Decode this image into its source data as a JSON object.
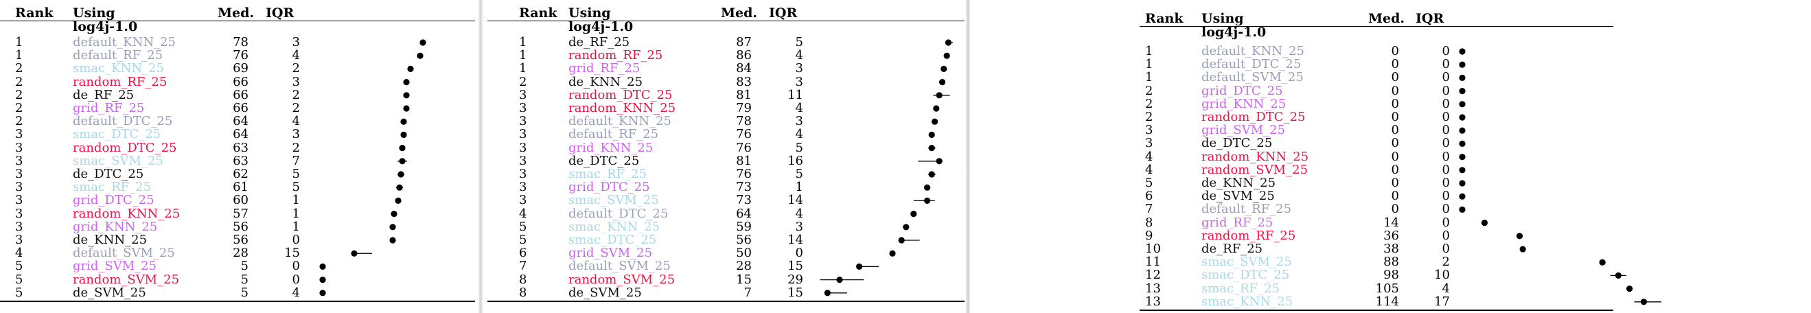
{
  "headers": {
    "rank": "Rank",
    "using": "Using",
    "med": "Med.",
    "iqr": "IQR"
  },
  "group_label": "log4j-1.0",
  "colors": {
    "default": "#9aa0b8",
    "smac": "#a8d8e6",
    "random": "#ee1144",
    "grid": "#cc66ee",
    "de": "#111111"
  },
  "panels": [
    {
      "rows": [
        {
          "rank": "1",
          "using": "default_KNN_25",
          "med": "78",
          "iqr": "3",
          "color": "default",
          "q1": 76.5,
          "q3": 79.5
        },
        {
          "rank": "1",
          "using": "default_RF_25",
          "med": "76",
          "iqr": "4",
          "color": "default",
          "q1": 74,
          "q3": 78
        },
        {
          "rank": "2",
          "using": "smac_KNN_25",
          "med": "69",
          "iqr": "2",
          "color": "smac",
          "q1": 68,
          "q3": 70
        },
        {
          "rank": "2",
          "using": "random_RF_25",
          "med": "66",
          "iqr": "3",
          "color": "random",
          "q1": 64.5,
          "q3": 67.5
        },
        {
          "rank": "2",
          "using": "de_RF_25",
          "med": "66",
          "iqr": "2",
          "color": "de",
          "q1": 65,
          "q3": 67
        },
        {
          "rank": "2",
          "using": "grid_RF_25",
          "med": "66",
          "iqr": "2",
          "color": "grid",
          "q1": 65,
          "q3": 67
        },
        {
          "rank": "2",
          "using": "default_DTC_25",
          "med": "64",
          "iqr": "4",
          "color": "default",
          "q1": 62,
          "q3": 66
        },
        {
          "rank": "3",
          "using": "smac_DTC_25",
          "med": "64",
          "iqr": "3",
          "color": "smac",
          "q1": 62.5,
          "q3": 65.5
        },
        {
          "rank": "3",
          "using": "random_DTC_25",
          "med": "63",
          "iqr": "2",
          "color": "random",
          "q1": 62,
          "q3": 64
        },
        {
          "rank": "3",
          "using": "smac_SVM_25",
          "med": "63",
          "iqr": "7",
          "color": "smac",
          "q1": 59.5,
          "q3": 66.5
        },
        {
          "rank": "3",
          "using": "de_DTC_25",
          "med": "62",
          "iqr": "5",
          "color": "de",
          "q1": 59.5,
          "q3": 64.5
        },
        {
          "rank": "3",
          "using": "smac_RF_25",
          "med": "61",
          "iqr": "5",
          "color": "smac",
          "q1": 58.5,
          "q3": 63.5
        },
        {
          "rank": "3",
          "using": "grid_DTC_25",
          "med": "60",
          "iqr": "1",
          "color": "grid",
          "q1": 59.5,
          "q3": 60.5
        },
        {
          "rank": "3",
          "using": "random_KNN_25",
          "med": "57",
          "iqr": "1",
          "color": "random",
          "q1": 56.5,
          "q3": 57.5
        },
        {
          "rank": "3",
          "using": "grid_KNN_25",
          "med": "56",
          "iqr": "1",
          "color": "grid",
          "q1": 55.5,
          "q3": 56.5
        },
        {
          "rank": "3",
          "using": "de_KNN_25",
          "med": "56",
          "iqr": "0",
          "color": "de",
          "q1": 56,
          "q3": 56
        },
        {
          "rank": "4",
          "using": "default_SVM_25",
          "med": "28",
          "iqr": "15",
          "color": "default",
          "q1": 26,
          "q3": 41
        },
        {
          "rank": "5",
          "using": "grid_SVM_25",
          "med": "5",
          "iqr": "0",
          "color": "grid",
          "q1": 5,
          "q3": 5
        },
        {
          "rank": "5",
          "using": "random_SVM_25",
          "med": "5",
          "iqr": "0",
          "color": "random",
          "q1": 5,
          "q3": 5
        },
        {
          "rank": "5",
          "using": "de_SVM_25",
          "med": "5",
          "iqr": "4",
          "color": "de",
          "q1": 3,
          "q3": 7
        }
      ]
    },
    {
      "rows": [
        {
          "rank": "1",
          "using": "de_RF_25",
          "med": "87",
          "iqr": "5",
          "color": "de",
          "q1": 85,
          "q3": 90
        },
        {
          "rank": "1",
          "using": "random_RF_25",
          "med": "86",
          "iqr": "4",
          "color": "random",
          "q1": 84,
          "q3": 88
        },
        {
          "rank": "1",
          "using": "grid_RF_25",
          "med": "84",
          "iqr": "3",
          "color": "grid",
          "q1": 82.5,
          "q3": 85.5
        },
        {
          "rank": "2",
          "using": "de_KNN_25",
          "med": "83",
          "iqr": "3",
          "color": "de",
          "q1": 81.5,
          "q3": 84.5
        },
        {
          "rank": "3",
          "using": "random_DTC_25",
          "med": "81",
          "iqr": "11",
          "color": "random",
          "q1": 77,
          "q3": 88
        },
        {
          "rank": "3",
          "using": "random_KNN_25",
          "med": "79",
          "iqr": "4",
          "color": "random",
          "q1": 77,
          "q3": 81
        },
        {
          "rank": "3",
          "using": "default_KNN_25",
          "med": "78",
          "iqr": "3",
          "color": "default",
          "q1": 76.5,
          "q3": 79.5
        },
        {
          "rank": "3",
          "using": "default_RF_25",
          "med": "76",
          "iqr": "4",
          "color": "default",
          "q1": 74,
          "q3": 78
        },
        {
          "rank": "3",
          "using": "grid_KNN_25",
          "med": "76",
          "iqr": "5",
          "color": "grid",
          "q1": 73.5,
          "q3": 78.5
        },
        {
          "rank": "3",
          "using": "de_DTC_25",
          "med": "81",
          "iqr": "16",
          "color": "de",
          "q1": 67,
          "q3": 83
        },
        {
          "rank": "3",
          "using": "smac_RF_25",
          "med": "76",
          "iqr": "5",
          "color": "smac",
          "q1": 73.5,
          "q3": 78.5
        },
        {
          "rank": "3",
          "using": "grid_DTC_25",
          "med": "73",
          "iqr": "1",
          "color": "grid",
          "q1": 72.5,
          "q3": 73.5
        },
        {
          "rank": "3",
          "using": "smac_SVM_25",
          "med": "73",
          "iqr": "14",
          "color": "smac",
          "q1": 64,
          "q3": 78
        },
        {
          "rank": "4",
          "using": "default_DTC_25",
          "med": "64",
          "iqr": "4",
          "color": "default",
          "q1": 62,
          "q3": 66
        },
        {
          "rank": "5",
          "using": "smac_KNN_25",
          "med": "59",
          "iqr": "3",
          "color": "smac",
          "q1": 57.5,
          "q3": 60.5
        },
        {
          "rank": "5",
          "using": "smac_DTC_25",
          "med": "56",
          "iqr": "14",
          "color": "smac",
          "q1": 54,
          "q3": 68
        },
        {
          "rank": "6",
          "using": "grid_SVM_25",
          "med": "50",
          "iqr": "0",
          "color": "grid",
          "q1": 50,
          "q3": 50
        },
        {
          "rank": "7",
          "using": "default_SVM_25",
          "med": "28",
          "iqr": "15",
          "color": "default",
          "q1": 26,
          "q3": 41
        },
        {
          "rank": "8",
          "using": "random_SVM_25",
          "med": "15",
          "iqr": "29",
          "color": "random",
          "q1": 2,
          "q3": 31
        },
        {
          "rank": "8",
          "using": "de_SVM_25",
          "med": "7",
          "iqr": "15",
          "color": "de",
          "q1": 5,
          "q3": 20
        }
      ]
    },
    {
      "rows": [
        {
          "rank": "1",
          "using": "default_KNN_25",
          "med": "0",
          "iqr": "0",
          "color": "default",
          "q1": 0,
          "q3": 0
        },
        {
          "rank": "1",
          "using": "default_DTC_25",
          "med": "0",
          "iqr": "0",
          "color": "default",
          "q1": 0,
          "q3": 0
        },
        {
          "rank": "1",
          "using": "default_SVM_25",
          "med": "0",
          "iqr": "0",
          "color": "default",
          "q1": 0,
          "q3": 0
        },
        {
          "rank": "2",
          "using": "grid_DTC_25",
          "med": "0",
          "iqr": "0",
          "color": "grid",
          "q1": 0,
          "q3": 0
        },
        {
          "rank": "2",
          "using": "grid_KNN_25",
          "med": "0",
          "iqr": "0",
          "color": "grid",
          "q1": 0,
          "q3": 0
        },
        {
          "rank": "2",
          "using": "random_DTC_25",
          "med": "0",
          "iqr": "0",
          "color": "random",
          "q1": 0,
          "q3": 0
        },
        {
          "rank": "3",
          "using": "grid_SVM_25",
          "med": "0",
          "iqr": "0",
          "color": "grid",
          "q1": 0,
          "q3": 0
        },
        {
          "rank": "3",
          "using": "de_DTC_25",
          "med": "0",
          "iqr": "0",
          "color": "de",
          "q1": 0,
          "q3": 0
        },
        {
          "rank": "4",
          "using": "random_KNN_25",
          "med": "0",
          "iqr": "0",
          "color": "random",
          "q1": 0,
          "q3": 0
        },
        {
          "rank": "4",
          "using": "random_SVM_25",
          "med": "0",
          "iqr": "0",
          "color": "random",
          "q1": 0,
          "q3": 0
        },
        {
          "rank": "5",
          "using": "de_KNN_25",
          "med": "0",
          "iqr": "0",
          "color": "de",
          "q1": 0,
          "q3": 0
        },
        {
          "rank": "6",
          "using": "de_SVM_25",
          "med": "0",
          "iqr": "0",
          "color": "de",
          "q1": 0,
          "q3": 0
        },
        {
          "rank": "7",
          "using": "default_RF_25",
          "med": "0",
          "iqr": "0",
          "color": "default",
          "q1": 0,
          "q3": 0
        },
        {
          "rank": "8",
          "using": "grid_RF_25",
          "med": "14",
          "iqr": "0",
          "color": "grid",
          "q1": 14,
          "q3": 14
        },
        {
          "rank": "9",
          "using": "random_RF_25",
          "med": "36",
          "iqr": "0",
          "color": "random",
          "q1": 36,
          "q3": 36
        },
        {
          "rank": "10",
          "using": "de_RF_25",
          "med": "38",
          "iqr": "0",
          "color": "de",
          "q1": 38,
          "q3": 38
        },
        {
          "rank": "11",
          "using": "smac_SVM_25",
          "med": "88",
          "iqr": "2",
          "color": "smac",
          "q1": 87,
          "q3": 89
        },
        {
          "rank": "12",
          "using": "smac_DTC_25",
          "med": "98",
          "iqr": "10",
          "color": "smac",
          "q1": 93,
          "q3": 103
        },
        {
          "rank": "13",
          "using": "smac_RF_25",
          "med": "105",
          "iqr": "4",
          "color": "smac",
          "q1": 103,
          "q3": 107
        },
        {
          "rank": "13",
          "using": "smac_KNN_25",
          "med": "114",
          "iqr": "17",
          "color": "smac",
          "q1": 108,
          "q3": 125
        }
      ]
    }
  ],
  "chart_data": [
    {
      "type": "scatter",
      "x_range": [
        0,
        100
      ],
      "series": "panels.0.rows (median dot, q1-q3 whisker)"
    },
    {
      "type": "scatter",
      "x_range": [
        0,
        100
      ],
      "series": "panels.1.rows (median dot, q1-q3 whisker)"
    },
    {
      "type": "scatter",
      "x_range": [
        0,
        125
      ],
      "series": "panels.2.rows (median dot, q1-q3 whisker)"
    }
  ]
}
